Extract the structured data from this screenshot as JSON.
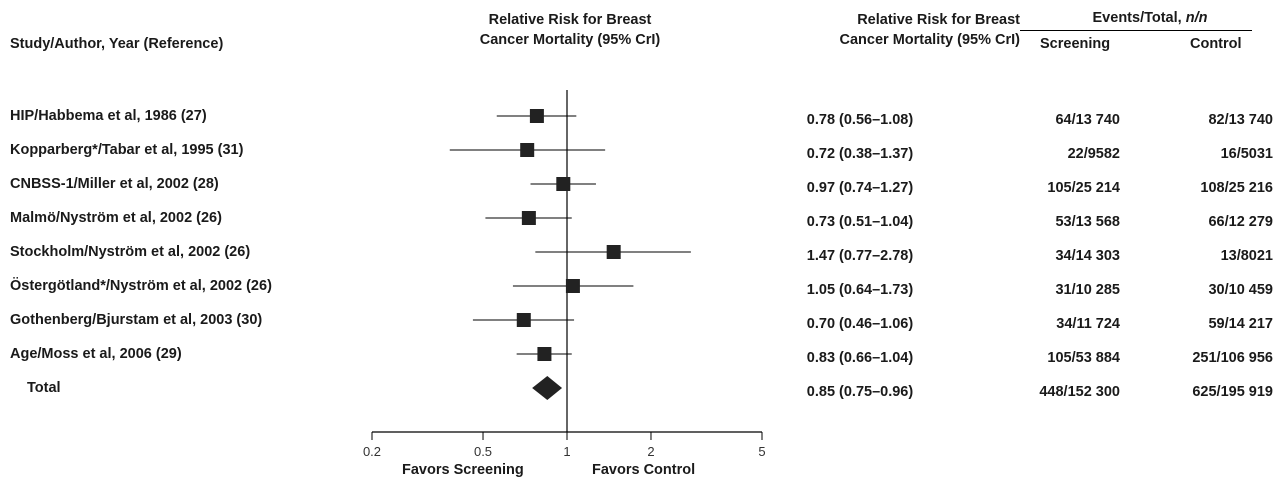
{
  "headers": {
    "study": "Study/Author, Year (Reference)",
    "plot_line1": "Relative Risk for Breast",
    "plot_line2": "Cancer Mortality (95% CrI)",
    "ci_line1": "Relative Risk for Breast",
    "ci_line2": "Cancer Mortality (95% CrI)",
    "events_prefix": "Events/Total, ",
    "events_suffix": "n/n",
    "screening": "Screening",
    "control": "Control"
  },
  "favors": {
    "screening": "Favors Screening",
    "control": "Favors Control"
  },
  "rows": [
    {
      "study": "HIP/Habbema et al, 1986 (27)",
      "ci_text": "0.78 (0.56–1.08)",
      "screening": "64/13 740",
      "control": "82/13 740"
    },
    {
      "study": "Kopparberg*/Tabar et al, 1995 (31)",
      "ci_text": "0.72 (0.38–1.37)",
      "screening": "22/9582",
      "control": "16/5031"
    },
    {
      "study": "CNBSS-1/Miller et al, 2002 (28)",
      "ci_text": "0.97 (0.74–1.27)",
      "screening": "105/25 214",
      "control": "108/25 216"
    },
    {
      "study": "Malmö/Nyström et al, 2002 (26)",
      "ci_text": "0.73 (0.51–1.04)",
      "screening": "53/13 568",
      "control": "66/12 279"
    },
    {
      "study": "Stockholm/Nyström et al, 2002 (26)",
      "ci_text": "1.47 (0.77–2.78)",
      "screening": "34/14 303",
      "control": "13/8021"
    },
    {
      "study": "Östergötland*/Nyström et al, 2002 (26)",
      "ci_text": "1.05 (0.64–1.73)",
      "screening": "31/10 285",
      "control": "30/10 459"
    },
    {
      "study": "Gothenberg/Bjurstam et al, 2003 (30)",
      "ci_text": "0.70 (0.46–1.06)",
      "screening": "34/11 724",
      "control": "59/14 217"
    },
    {
      "study": "Age/Moss et al, 2006 (29)",
      "ci_text": "0.83 (0.66–1.04)",
      "screening": "105/53 884",
      "control": "251/106 956"
    },
    {
      "study": "Total",
      "ci_text": "0.85 (0.75–0.96)",
      "screening": "448/152 300",
      "control": "625/195 919"
    }
  ],
  "chart_data": {
    "type": "forest",
    "xscale": "log",
    "xlim": [
      0.2,
      5
    ],
    "xticks": [
      0.2,
      0.5,
      1,
      2,
      5
    ],
    "xtick_labels": [
      "0.2",
      "0.5",
      "1",
      "2",
      "5"
    ],
    "reference_line": 1,
    "studies": [
      {
        "label": "HIP/Habbema et al, 1986 (27)",
        "rr": 0.78,
        "lo": 0.56,
        "hi": 1.08,
        "marker": "square"
      },
      {
        "label": "Kopparberg*/Tabar et al, 1995 (31)",
        "rr": 0.72,
        "lo": 0.38,
        "hi": 1.37,
        "marker": "square"
      },
      {
        "label": "CNBSS-1/Miller et al, 2002 (28)",
        "rr": 0.97,
        "lo": 0.74,
        "hi": 1.27,
        "marker": "square"
      },
      {
        "label": "Malmö/Nyström et al, 2002 (26)",
        "rr": 0.73,
        "lo": 0.51,
        "hi": 1.04,
        "marker": "square"
      },
      {
        "label": "Stockholm/Nyström et al, 2002 (26)",
        "rr": 1.47,
        "lo": 0.77,
        "hi": 2.78,
        "marker": "square"
      },
      {
        "label": "Östergötland*/Nyström et al, 2002 (26)",
        "rr": 1.05,
        "lo": 0.64,
        "hi": 1.73,
        "marker": "square"
      },
      {
        "label": "Gothenberg/Bjurstam et al, 2003 (30)",
        "rr": 0.7,
        "lo": 0.46,
        "hi": 1.06,
        "marker": "square"
      },
      {
        "label": "Age/Moss et al, 2006 (29)",
        "rr": 0.83,
        "lo": 0.66,
        "hi": 1.04,
        "marker": "square"
      },
      {
        "label": "Total",
        "rr": 0.85,
        "lo": 0.75,
        "hi": 0.96,
        "marker": "diamond"
      }
    ],
    "marker_color": "#222222"
  }
}
